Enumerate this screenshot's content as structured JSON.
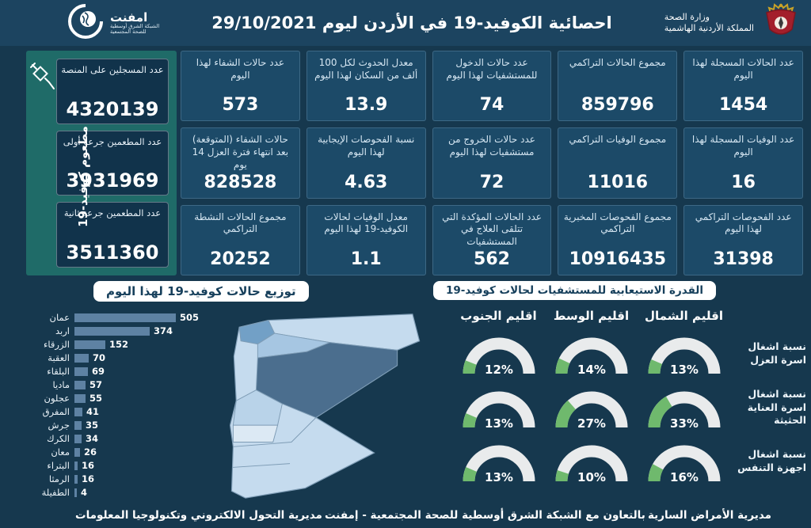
{
  "header": {
    "title": "احصائية الكوفيد-19 في الأردن ليوم",
    "date": "29/10/2021",
    "logo_name": "امفنت",
    "logo_sub1": "الشبكة الشرق أوسطية",
    "logo_sub2": "للصحة المجتمعية",
    "ministry_line1": "وزارة الصحة",
    "ministry_line2": "المملكة الأردنية الهاشمية"
  },
  "vaccine_panel": {
    "side_label": "مطعوم كوفيد-19",
    "boxes": [
      {
        "label": "عدد المسجلين على المنصة",
        "value": "4320139"
      },
      {
        "label": "عدد المطعمين جرعة أولى",
        "value": "3931969"
      },
      {
        "label": "عدد المطعمين جرعة ثانية",
        "value": "3511360"
      }
    ]
  },
  "stat_cards": [
    {
      "label": "عدد الحالات المسجلة لهذا اليوم",
      "value": "1454"
    },
    {
      "label": "مجموع الحالات التراكمي",
      "value": "859796"
    },
    {
      "label": "عدد حالات الدخول للمستشفيات لهذا اليوم",
      "value": "74"
    },
    {
      "label": "معدل الحدوث لكل 100 ألف من السكان لهذا اليوم",
      "value": "13.9"
    },
    {
      "label": "عدد حالات الشفاء لهذا اليوم",
      "value": "573"
    },
    {
      "label": "عدد الوفيات المسجلة لهذا اليوم",
      "value": "16"
    },
    {
      "label": "مجموع الوفيات التراكمي",
      "value": "11016"
    },
    {
      "label": "عدد حالات الخروج من مستشفيات لهذا اليوم",
      "value": "72"
    },
    {
      "label": "نسبة الفحوصات الإيجابية لهذا اليوم",
      "value": "4.63"
    },
    {
      "label": "حالات الشفاء (المتوقعة) بعد انتهاء فترة العزل 14 يوم",
      "value": "828528"
    },
    {
      "label": "عدد الفحوصات التراكمي لهذا اليوم",
      "value": "31398"
    },
    {
      "label": "مجموع الفحوصات المخبرية التراكمي",
      "value": "10916435"
    },
    {
      "label": "عدد الحالات المؤكدة التي تتلقى العلاج في المستشفيات",
      "value": "562"
    },
    {
      "label": "معدل الوفيات لحالات الكوفيد-19 لهذا اليوم",
      "value": "1.1"
    },
    {
      "label": "مجموع الحالات النشطة التراكمي",
      "value": "20252"
    }
  ],
  "chart_data": [
    {
      "type": "bar",
      "orientation": "horizontal",
      "title": "توزيع حالات كوفيد-19 لهذا اليوم",
      "categories": [
        "عمان",
        "اربد",
        "الزرقاء",
        "العقبة",
        "البلقاء",
        "ماديا",
        "عجلون",
        "المفرق",
        "جرش",
        "الكرك",
        "معان",
        "البتراء",
        "الرمثا",
        "الطفيلة"
      ],
      "values": [
        505,
        374,
        152,
        70,
        69,
        57,
        55,
        41,
        35,
        34,
        26,
        16,
        16,
        4
      ],
      "xlim": [
        0,
        505
      ],
      "bar_color": "#5e82a3"
    },
    {
      "type": "gauge",
      "title": "القدرة الاستيعابية للمستشفيات لحالات كوفيد-19",
      "unit": "%",
      "columns": [
        "اقليم الشمال",
        "اقليم الوسط",
        "اقليم الجنوب"
      ],
      "rows": [
        {
          "label": "نسبة اشغال اسرة العزل",
          "values": [
            13,
            14,
            12
          ]
        },
        {
          "label": "نسبة اشغال اسرة العناية الحثيثة",
          "values": [
            33,
            27,
            13
          ]
        },
        {
          "label": "نسبة اشغال اجهزة التنفس",
          "values": [
            16,
            10,
            13
          ]
        }
      ],
      "track_color": "#e9ebec",
      "fill_color": "#6fb96d"
    }
  ],
  "footer": {
    "left": "مديرية التحول الالكتروني وتكنولوجيا المعلومات",
    "center": "بالتعاون مع الشبكة الشرق أوسطية للصحة المجتمعية - إمفنت",
    "right": "مديرية الأمراض السارية"
  },
  "colors": {
    "background": "#16384e",
    "header": "#1c4460",
    "card": "#1c4a68",
    "vaccine_panel": "#1f6b68",
    "bar": "#5e82a3",
    "gauge_track": "#e9ebec",
    "gauge_fill": "#6fb96d",
    "map_light": "#c5dbee",
    "map_dark": "#4b6e8e"
  }
}
